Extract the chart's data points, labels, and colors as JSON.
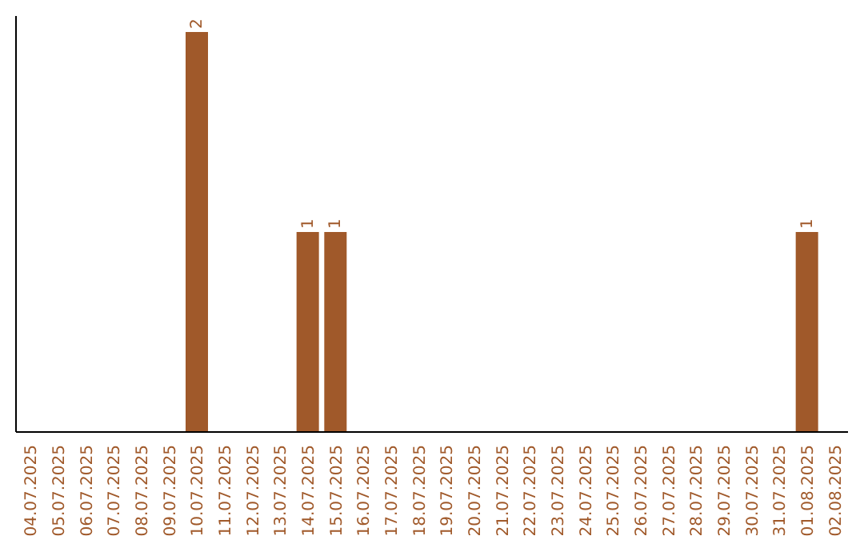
{
  "chart_data": {
    "type": "bar",
    "categories": [
      "04.07.2025",
      "05.07.2025",
      "06.07.2025",
      "07.07.2025",
      "08.07.2025",
      "09.07.2025",
      "10.07.2025",
      "11.07.2025",
      "12.07.2025",
      "13.07.2025",
      "14.07.2025",
      "15.07.2025",
      "16.07.2025",
      "17.07.2025",
      "18.07.2025",
      "19.07.2025",
      "20.07.2025",
      "21.07.2025",
      "22.07.2025",
      "23.07.2025",
      "24.07.2025",
      "25.07.2025",
      "26.07.2025",
      "27.07.2025",
      "28.07.2025",
      "29.07.2025",
      "30.07.2025",
      "31.07.2025",
      "01.08.2025",
      "02.08.2025"
    ],
    "values": [
      0,
      0,
      0,
      0,
      0,
      0,
      2,
      0,
      0,
      0,
      1,
      1,
      0,
      0,
      0,
      0,
      0,
      0,
      0,
      0,
      0,
      0,
      0,
      0,
      0,
      0,
      0,
      0,
      1,
      0
    ],
    "value_labels": [
      null,
      null,
      null,
      null,
      null,
      null,
      "2",
      null,
      null,
      null,
      "1",
      "1",
      null,
      null,
      null,
      null,
      null,
      null,
      null,
      null,
      null,
      null,
      null,
      null,
      null,
      null,
      null,
      null,
      "1",
      null
    ],
    "color": "#a0592a",
    "grid": false,
    "legend": false
  }
}
